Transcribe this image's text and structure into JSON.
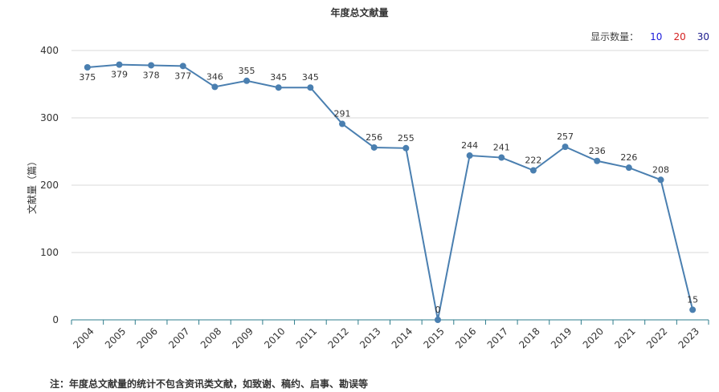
{
  "title": "年度总文献量",
  "count_control": {
    "label": "显示数量：",
    "options": [
      {
        "label": "10",
        "color": "#1a1adb"
      },
      {
        "label": "20",
        "color": "#d42020"
      },
      {
        "label": "30",
        "color": "#1a1a8c"
      }
    ]
  },
  "note": "注：年度总文献量的统计不包含资讯类文献，如致谢、稿约、启事、勘误等",
  "chart_data": {
    "type": "line",
    "title": "年度总文献量",
    "xlabel": "",
    "ylabel": "文献量（篇）",
    "ylim": [
      0,
      400
    ],
    "yticks": [
      0,
      100,
      200,
      300,
      400
    ],
    "grid": true,
    "line_color": "#4a7fb0",
    "categories": [
      "2004",
      "2005",
      "2006",
      "2007",
      "2008",
      "2009",
      "2010",
      "2011",
      "2012",
      "2013",
      "2014",
      "2015",
      "2016",
      "2017",
      "2018",
      "2019",
      "2020",
      "2021",
      "2022",
      "2023"
    ],
    "series": [
      {
        "values": [
          375,
          379,
          378,
          377,
          346,
          355,
          345,
          345,
          291,
          256,
          255,
          0,
          244,
          241,
          222,
          257,
          236,
          226,
          208,
          15
        ],
        "labels": [
          "375",
          "379",
          "378",
          "377",
          "346",
          "355",
          "345",
          "345",
          "291",
          "256",
          "255",
          "0",
          "244",
          "241",
          "222",
          "257",
          "236",
          "226",
          "208",
          "15"
        ]
      }
    ]
  }
}
